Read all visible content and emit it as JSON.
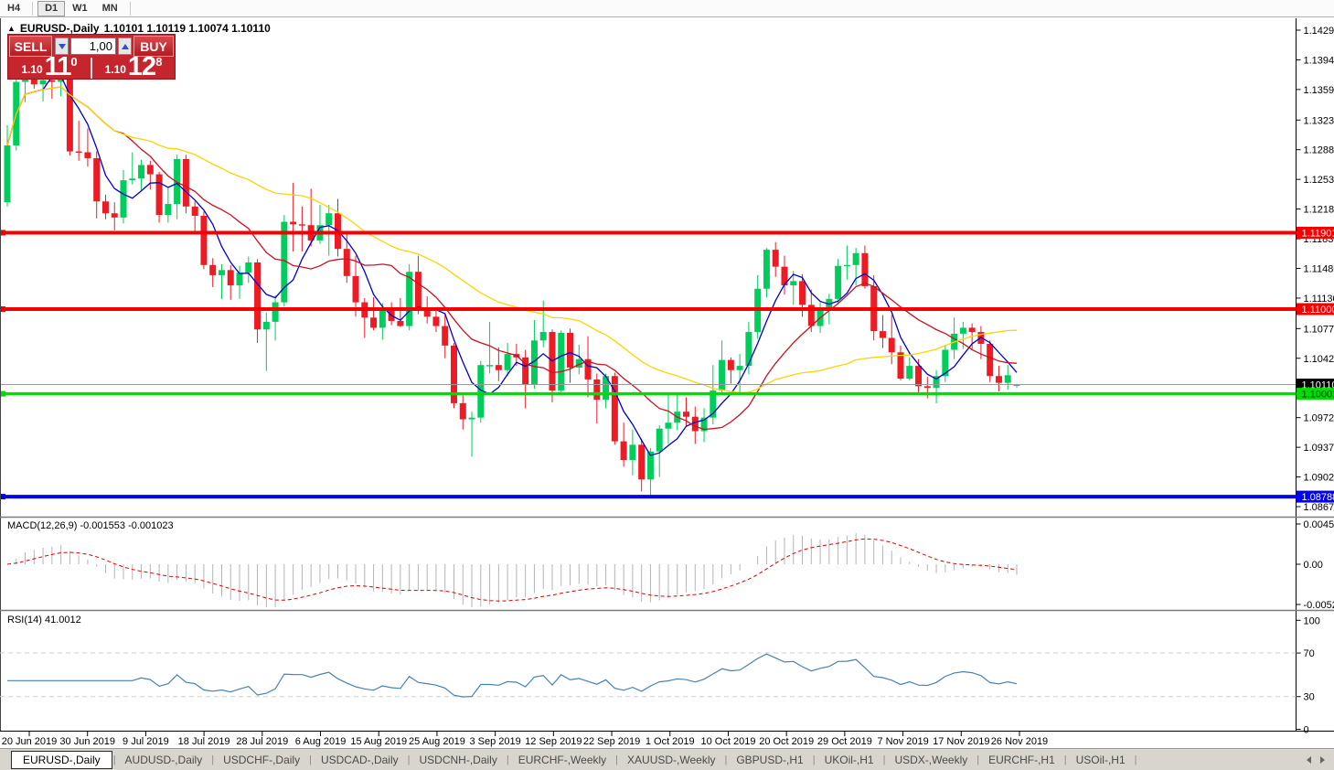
{
  "toolbar": {
    "timeframes": [
      {
        "label": "H4",
        "active": false
      },
      {
        "label": "D1",
        "active": true
      },
      {
        "label": "W1",
        "active": false
      },
      {
        "label": "MN",
        "active": false
      }
    ]
  },
  "chart": {
    "title_symbol": "EURUSD-,Daily",
    "title_ohlc": "1.10101 1.10119 1.10074 1.10110",
    "trade_panel": {
      "sell_label": "SELL",
      "buy_label": "BUY",
      "volume": "1,00",
      "sell_price_small": "1.10",
      "sell_price_big": "11",
      "sell_price_sup": "0",
      "buy_price_small": "1.10",
      "buy_price_big": "12",
      "buy_price_sup": "8"
    }
  },
  "indicators": {
    "macd_label": "MACD(12,26,9) -0.001553 -0.001023",
    "rsi_label": "RSI(14) 41.0012"
  },
  "chart_data": {
    "type": "candlestick",
    "symbol": "EURUSD-",
    "timeframe": "Daily",
    "title": "EURUSD-,Daily 1.10101 1.10119 1.10074 1.10110",
    "y_axis_range": [
      1.08573,
      1.1443
    ],
    "grid": false,
    "y_tick_labels": [
      "1.14290",
      "1.13940",
      "1.13590",
      "1.13230",
      "1.12880",
      "1.12530",
      "1.12180",
      "1.11830",
      "1.11480",
      "1.11130",
      "1.10770",
      "1.10420",
      "1.09720",
      "1.09370",
      "1.09020",
      "1.08670"
    ],
    "x_tick_labels": [
      "20 Jun 2019",
      "30 Jun 2019",
      "9 Jul 2019",
      "18 Jul 2019",
      "28 Jul 2019",
      "6 Aug 2019",
      "15 Aug 2019",
      "25 Aug 2019",
      "3 Sep 2019",
      "12 Sep 2019",
      "22 Sep 2019",
      "1 Oct 2019",
      "10 Oct 2019",
      "20 Oct 2019",
      "29 Oct 2019",
      "7 Nov 2019",
      "17 Nov 2019",
      "26 Nov 2019"
    ],
    "horizontal_lines": [
      {
        "price": 1.11901,
        "label": "1.11901",
        "color": "#f40000",
        "width": 4
      },
      {
        "price": 1.11,
        "label": "1.11000",
        "color": "#f40000",
        "width": 4
      },
      {
        "price": 1.10001,
        "label": "1.10001",
        "color": "#00dd00",
        "width": 3.5
      },
      {
        "price": 1.08788,
        "label": "1.08788",
        "color": "#0000f0",
        "width": 4
      }
    ],
    "current_price": {
      "value": 1.1011,
      "label": "1.10110"
    },
    "moving_averages": [
      {
        "period": 5,
        "color": "#0000cd"
      },
      {
        "period": 13,
        "color": "#cc1122"
      },
      {
        "period": 34,
        "color": "#ffd400"
      }
    ],
    "colors": {
      "bull": "#00cd5c",
      "bear": "#ed1c24",
      "macd_hist": "#b4b4b4",
      "macd_signal": "#dd0000",
      "rsi_line": "#4682b4",
      "level_dash": "#cfcfcf"
    },
    "macd_panel": {
      "params": "12,26,9",
      "y_labels": [
        "0.004536",
        "0.00",
        "-0.00520"
      ],
      "scale_max": 0.004536
    },
    "rsi_panel": {
      "params": "14",
      "levels": [
        70,
        30
      ],
      "y_labels": [
        "100",
        "70",
        "30",
        "0"
      ]
    },
    "candles_ohlc": [
      [
        1.1226,
        1.1317,
        1.1221,
        1.1293
      ],
      [
        1.1293,
        1.1378,
        1.1287,
        1.1368
      ],
      [
        1.1368,
        1.1404,
        1.1344,
        1.1399
      ],
      [
        1.1399,
        1.1412,
        1.136,
        1.1365
      ],
      [
        1.1365,
        1.1391,
        1.1345,
        1.137
      ],
      [
        1.137,
        1.1392,
        1.1348,
        1.1368
      ],
      [
        1.1368,
        1.1381,
        1.1351,
        1.1373
      ],
      [
        1.1373,
        1.1376,
        1.1281,
        1.1286
      ],
      [
        1.1286,
        1.1322,
        1.1275,
        1.1285
      ],
      [
        1.1285,
        1.1313,
        1.1268,
        1.1278
      ],
      [
        1.1278,
        1.1286,
        1.1207,
        1.1227
      ],
      [
        1.1227,
        1.1235,
        1.1206,
        1.1213
      ],
      [
        1.1213,
        1.1226,
        1.1193,
        1.1208
      ],
      [
        1.1208,
        1.1264,
        1.1201,
        1.1252
      ],
      [
        1.1252,
        1.1285,
        1.1247,
        1.1254
      ],
      [
        1.1254,
        1.1276,
        1.1239,
        1.127
      ],
      [
        1.127,
        1.1275,
        1.1241,
        1.1259
      ],
      [
        1.1259,
        1.1262,
        1.1202,
        1.1211
      ],
      [
        1.1211,
        1.1243,
        1.1202,
        1.1224
      ],
      [
        1.1224,
        1.1282,
        1.1206,
        1.1277
      ],
      [
        1.1277,
        1.1282,
        1.1213,
        1.1221
      ],
      [
        1.1221,
        1.1227,
        1.119,
        1.121
      ],
      [
        1.121,
        1.1215,
        1.1147,
        1.1152
      ],
      [
        1.1152,
        1.116,
        1.1126,
        1.114
      ],
      [
        1.114,
        1.1153,
        1.1112,
        1.1146
      ],
      [
        1.1146,
        1.1152,
        1.1111,
        1.1128
      ],
      [
        1.1128,
        1.1151,
        1.1112,
        1.1143
      ],
      [
        1.1143,
        1.1162,
        1.1131,
        1.1155
      ],
      [
        1.1155,
        1.1159,
        1.106,
        1.1076
      ],
      [
        1.1076,
        1.1096,
        1.1027,
        1.1085
      ],
      [
        1.1085,
        1.1116,
        1.1063,
        1.1108
      ],
      [
        1.1108,
        1.1211,
        1.1103,
        1.1203
      ],
      [
        1.1203,
        1.1249,
        1.1168,
        1.12
      ],
      [
        1.12,
        1.1221,
        1.1168,
        1.1199
      ],
      [
        1.1199,
        1.1242,
        1.1174,
        1.1181
      ],
      [
        1.1181,
        1.1223,
        1.1177,
        1.1199
      ],
      [
        1.1199,
        1.1223,
        1.1163,
        1.1213
      ],
      [
        1.1213,
        1.123,
        1.1162,
        1.1171
      ],
      [
        1.1171,
        1.1192,
        1.1131,
        1.1139
      ],
      [
        1.1139,
        1.1163,
        1.1091,
        1.1108
      ],
      [
        1.1108,
        1.1113,
        1.1066,
        1.109
      ],
      [
        1.109,
        1.1114,
        1.1075,
        1.1078
      ],
      [
        1.1078,
        1.1107,
        1.1064,
        1.11
      ],
      [
        1.11,
        1.1108,
        1.1081,
        1.1086
      ],
      [
        1.1086,
        1.1113,
        1.1079,
        1.108
      ],
      [
        1.108,
        1.1153,
        1.1075,
        1.1144
      ],
      [
        1.1144,
        1.1163,
        1.1094,
        1.1101
      ],
      [
        1.1101,
        1.1115,
        1.1083,
        1.1091
      ],
      [
        1.1091,
        1.1098,
        1.1073,
        1.108
      ],
      [
        1.108,
        1.1094,
        1.1042,
        1.1057
      ],
      [
        1.1057,
        1.106,
        1.0983,
        1.0989
      ],
      [
        1.0989,
        1.0998,
        1.0958,
        1.097
      ],
      [
        1.097,
        1.0979,
        1.0926,
        1.0972
      ],
      [
        1.0972,
        1.1039,
        1.0966,
        1.1034
      ],
      [
        1.1034,
        1.1085,
        1.1024,
        1.1034
      ],
      [
        1.1034,
        1.1055,
        1.1015,
        1.1028
      ],
      [
        1.1028,
        1.106,
        1.1021,
        1.1047
      ],
      [
        1.1047,
        1.1059,
        1.1033,
        1.1043
      ],
      [
        1.1043,
        1.1052,
        1.0983,
        1.1011
      ],
      [
        1.1011,
        1.1087,
        1.1006,
        1.1063
      ],
      [
        1.1063,
        1.111,
        1.1055,
        1.1073
      ],
      [
        1.1073,
        1.1076,
        1.099,
        1.1004
      ],
      [
        1.1004,
        1.1075,
        1.0998,
        1.1072
      ],
      [
        1.1072,
        1.1077,
        1.1013,
        1.1031
      ],
      [
        1.1031,
        1.1058,
        1.1023,
        1.1041
      ],
      [
        1.1041,
        1.1068,
        1.0996,
        1.1017
      ],
      [
        1.1017,
        1.1024,
        1.0965,
        1.0993
      ],
      [
        1.0993,
        1.1024,
        1.0983,
        1.1021
      ],
      [
        1.1021,
        1.1025,
        1.094,
        1.0944
      ],
      [
        1.0944,
        1.0966,
        1.0914,
        1.0922
      ],
      [
        1.0922,
        1.0958,
        1.0904,
        1.094
      ],
      [
        1.094,
        1.0947,
        1.0885,
        1.0899
      ],
      [
        1.0899,
        1.0936,
        1.0879,
        1.0932
      ],
      [
        1.0932,
        1.0963,
        1.0902,
        1.0959
      ],
      [
        1.0959,
        1.0999,
        1.0941,
        1.0966
      ],
      [
        1.0966,
        1.0999,
        1.0957,
        1.0979
      ],
      [
        1.0979,
        1.0996,
        1.0962,
        1.0973
      ],
      [
        1.0973,
        1.0985,
        1.0941,
        1.0956
      ],
      [
        1.0956,
        1.0983,
        1.0943,
        1.0972
      ],
      [
        1.0972,
        1.1034,
        1.0964,
        1.1004
      ],
      [
        1.1004,
        1.1063,
        1.1002,
        1.104
      ],
      [
        1.104,
        1.1043,
        1.1012,
        1.1028
      ],
      [
        1.1028,
        1.1047,
        1.1001,
        1.1033
      ],
      [
        1.1033,
        1.1085,
        1.1023,
        1.1073
      ],
      [
        1.1073,
        1.114,
        1.1065,
        1.1124
      ],
      [
        1.1124,
        1.1172,
        1.1114,
        1.117
      ],
      [
        1.117,
        1.1179,
        1.1138,
        1.115
      ],
      [
        1.115,
        1.1163,
        1.1117,
        1.1128
      ],
      [
        1.1128,
        1.1145,
        1.1105,
        1.1133
      ],
      [
        1.1133,
        1.1141,
        1.1091,
        1.1105
      ],
      [
        1.1105,
        1.1123,
        1.1073,
        1.108
      ],
      [
        1.108,
        1.1108,
        1.1072,
        1.1099
      ],
      [
        1.1099,
        1.1118,
        1.1082,
        1.1112
      ],
      [
        1.1112,
        1.1159,
        1.1106,
        1.1151
      ],
      [
        1.1151,
        1.1175,
        1.1135,
        1.1152
      ],
      [
        1.1152,
        1.1172,
        1.1128,
        1.1166
      ],
      [
        1.1166,
        1.1175,
        1.1124,
        1.1127
      ],
      [
        1.1127,
        1.114,
        1.1063,
        1.1074
      ],
      [
        1.1074,
        1.1093,
        1.1054,
        1.1066
      ],
      [
        1.1066,
        1.1093,
        1.1035,
        1.1049
      ],
      [
        1.1049,
        1.1057,
        1.1016,
        1.1018
      ],
      [
        1.1018,
        1.1043,
        1.1016,
        1.1033
      ],
      [
        1.1033,
        1.1041,
        1.1002,
        1.1009
      ],
      [
        1.1009,
        1.102,
        1.0995,
        1.1007
      ],
      [
        1.1007,
        1.1028,
        1.0989,
        1.1021
      ],
      [
        1.1021,
        1.1058,
        1.1014,
        1.1052
      ],
      [
        1.1052,
        1.109,
        1.1041,
        1.1071
      ],
      [
        1.1071,
        1.1085,
        1.1053,
        1.1078
      ],
      [
        1.1078,
        1.1083,
        1.1052,
        1.1073
      ],
      [
        1.1073,
        1.108,
        1.1041,
        1.1059
      ],
      [
        1.1059,
        1.1063,
        1.1014,
        1.1021
      ],
      [
        1.1021,
        1.1033,
        1.1003,
        1.1013
      ],
      [
        1.1013,
        1.1034,
        1.1005,
        1.1022
      ],
      [
        1.10101,
        1.10119,
        1.10074,
        1.1011
      ]
    ]
  },
  "tabs": {
    "items": [
      {
        "label": "EURUSD-,Daily",
        "active": true
      },
      {
        "label": "AUDUSD-,Daily",
        "active": false
      },
      {
        "label": "USDCHF-,Daily",
        "active": false
      },
      {
        "label": "USDCAD-,Daily",
        "active": false
      },
      {
        "label": "USDCNH-,Daily",
        "active": false
      },
      {
        "label": "EURCHF-,Weekly",
        "active": false
      },
      {
        "label": "XAUUSD-,Weekly",
        "active": false
      },
      {
        "label": "GBPUSD-,H1",
        "active": false
      },
      {
        "label": "UKOil-,H1",
        "active": false
      },
      {
        "label": "USDX-,Weekly",
        "active": false
      },
      {
        "label": "EURCHF-,H1",
        "active": false
      },
      {
        "label": "USOil-,H1",
        "active": false
      }
    ]
  }
}
